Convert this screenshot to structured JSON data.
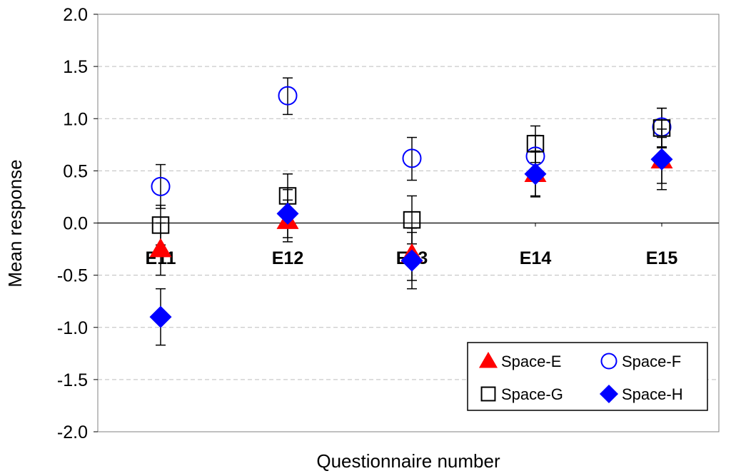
{
  "chart_data": {
    "type": "scatter",
    "xlabel": "Questionnaire number",
    "ylabel": "Mean response",
    "ylim": [
      -2.0,
      2.0
    ],
    "yticks": [
      "2.0",
      "1.5",
      "1.0",
      "0.5",
      "0.0",
      "-0.5",
      "-1.0",
      "-1.5",
      "-2.0"
    ],
    "categories": [
      "E11",
      "E12",
      "E13",
      "E14",
      "E15"
    ],
    "grid": "horizontal dashed",
    "legend_position": "bottom-right",
    "series": [
      {
        "name": "Space-E",
        "marker": "triangle",
        "color": "#ff0000",
        "values": [
          -0.25,
          0.02,
          -0.3,
          0.47,
          0.6
        ],
        "error_low": [
          -0.5,
          -0.18,
          -0.55,
          0.26,
          0.38
        ],
        "error_high": [
          0.0,
          0.22,
          -0.05,
          0.68,
          0.82
        ]
      },
      {
        "name": "Space-F",
        "marker": "circle-open",
        "color": "#0000ff",
        "values": [
          0.35,
          1.22,
          0.62,
          0.64,
          0.92
        ],
        "error_low": [
          0.14,
          1.04,
          0.41,
          0.43,
          0.73
        ],
        "error_high": [
          0.56,
          1.39,
          0.82,
          0.84,
          1.1
        ]
      },
      {
        "name": "Space-G",
        "marker": "square-open",
        "color": "#000000",
        "values": [
          -0.02,
          0.26,
          0.03,
          0.76,
          0.91
        ],
        "error_low": [
          -0.21,
          0.06,
          -0.2,
          0.58,
          0.72
        ],
        "error_high": [
          0.17,
          0.47,
          0.26,
          0.93,
          1.1
        ]
      },
      {
        "name": "Space-H",
        "marker": "diamond",
        "color": "#0000ff",
        "values": [
          -0.9,
          0.09,
          -0.36,
          0.47,
          0.61
        ],
        "error_low": [
          -1.17,
          -0.14,
          -0.63,
          0.25,
          0.32
        ],
        "error_high": [
          -0.63,
          0.32,
          -0.09,
          0.69,
          0.9
        ]
      }
    ]
  }
}
